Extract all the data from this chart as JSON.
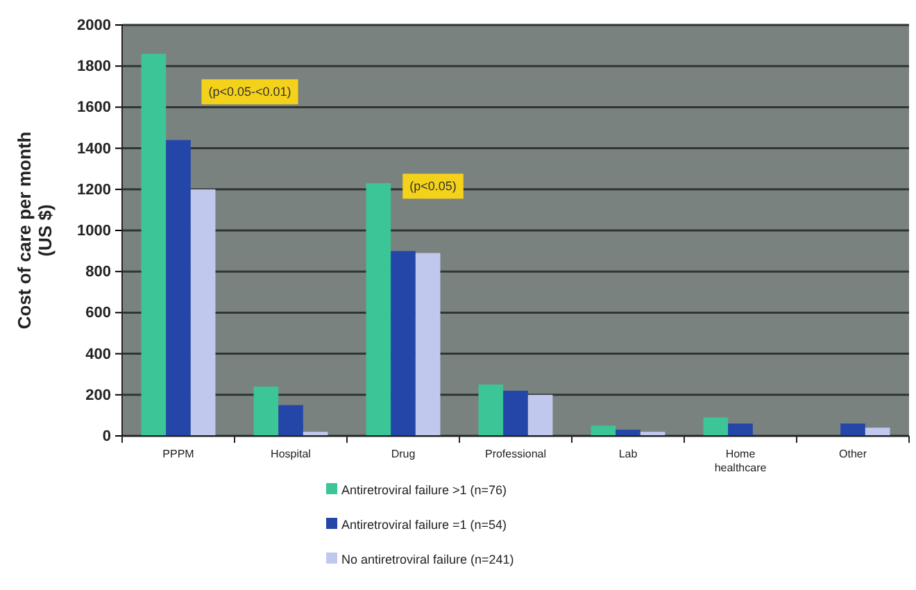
{
  "chart_data": {
    "type": "bar",
    "ylabel": "Cost of care per month\n(US $)",
    "categories": [
      "PPPM",
      "Hospital",
      "Drug",
      "Professional",
      "Lab",
      "Home healthcare",
      "Other"
    ],
    "series": [
      {
        "name": "Antiretroviral failure >1 (n=76)",
        "color": "#3cc596",
        "values": [
          1860,
          240,
          1230,
          250,
          50,
          90,
          0
        ]
      },
      {
        "name": "Antiretroviral failure =1 (n=54)",
        "color": "#2346a8",
        "values": [
          1440,
          150,
          900,
          220,
          30,
          60,
          60
        ]
      },
      {
        "name": "No antiretroviral failure (n=241)",
        "color": "#c0c8ee",
        "values": [
          1200,
          20,
          890,
          200,
          20,
          0,
          40
        ]
      }
    ],
    "ylim": [
      0,
      2000
    ],
    "yticks": [
      0,
      200,
      400,
      600,
      800,
      1000,
      1200,
      1400,
      1600,
      1800,
      2000
    ],
    "grid": "y",
    "legend": "bottom",
    "annotations": [
      "(p<0.05-<0.01)",
      "(p<0.05)"
    ]
  }
}
